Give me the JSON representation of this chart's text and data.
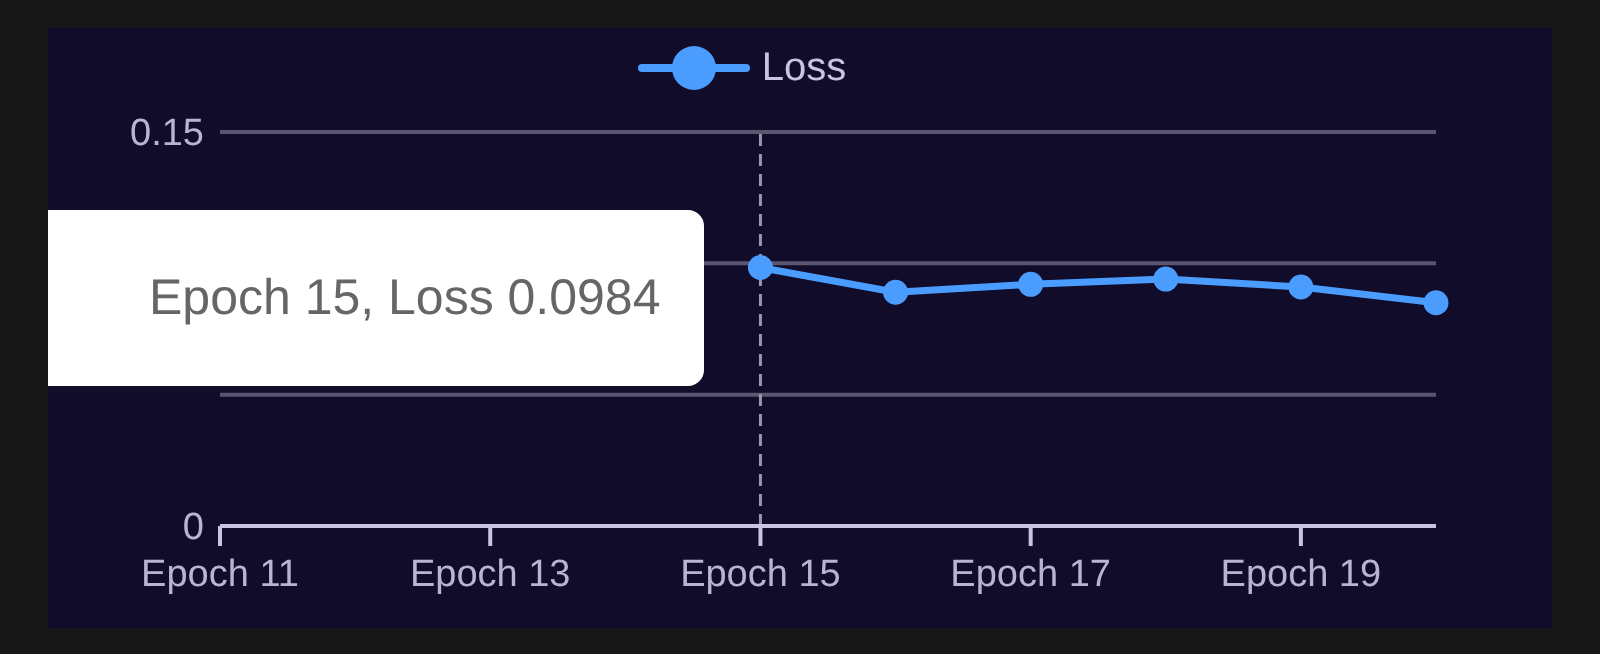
{
  "chart_data": {
    "type": "line",
    "categories": [
      "Epoch 11",
      null,
      "Epoch 13",
      null,
      "Epoch 15",
      null,
      "Epoch 17",
      null,
      "Epoch 19",
      null
    ],
    "series": [
      {
        "name": "Loss",
        "color": "#4a9dff",
        "values": [
          null,
          null,
          null,
          null,
          0.0984,
          0.089,
          0.092,
          0.094,
          0.091,
          0.085
        ]
      }
    ],
    "ylim": [
      0,
      0.15
    ],
    "yticks": [
      0,
      {
        "value": 0.05,
        "label": null
      },
      {
        "value": 0.1,
        "label": null
      },
      0.15
    ],
    "grid": "y",
    "legend": "top",
    "marker": "circle",
    "line_style": "solid",
    "ref_lines": [
      {
        "axis": "x",
        "value": "Epoch 15",
        "color": "#9a96aa",
        "line_style": "dashed"
      }
    ],
    "annotations": [
      {
        "text": "Epoch 15, Loss 0.0984",
        "x": "Epoch 15",
        "y": 0.0984
      }
    ]
  }
}
